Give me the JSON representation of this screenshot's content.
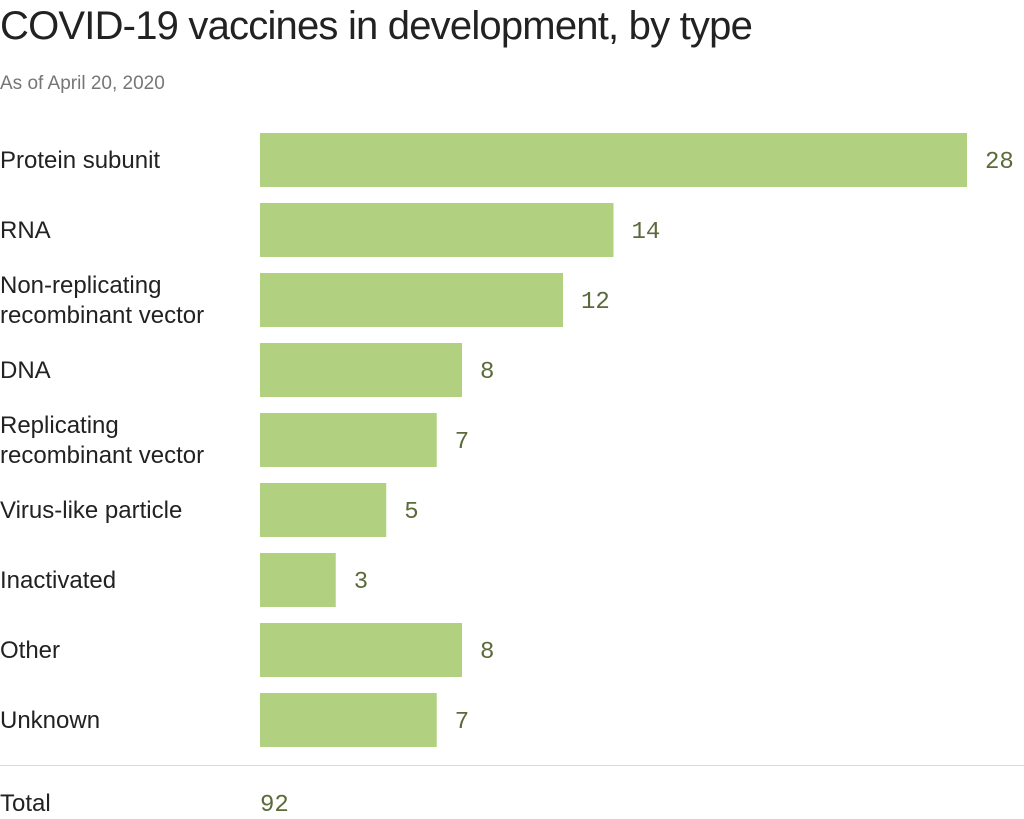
{
  "chart_data": {
    "type": "bar",
    "orientation": "horizontal",
    "title": "COVID-19 vaccines in development, by type",
    "subtitle": "As of April 20, 2020",
    "categories": [
      [
        "Protein subunit"
      ],
      [
        "RNA"
      ],
      [
        "Non-replicating",
        "recombinant vector"
      ],
      [
        "DNA"
      ],
      [
        "Replicating",
        "recombinant vector"
      ],
      [
        "Virus-like particle"
      ],
      [
        "Inactivated"
      ],
      [
        "Other"
      ],
      [
        "Unknown"
      ]
    ],
    "values": [
      28,
      14,
      12,
      8,
      7,
      5,
      3,
      8,
      7
    ],
    "xlim": [
      0,
      28
    ],
    "total_label": "Total",
    "total_value": "92",
    "bar_color": "#b2d180",
    "value_label_color": "#5c6a3a"
  }
}
